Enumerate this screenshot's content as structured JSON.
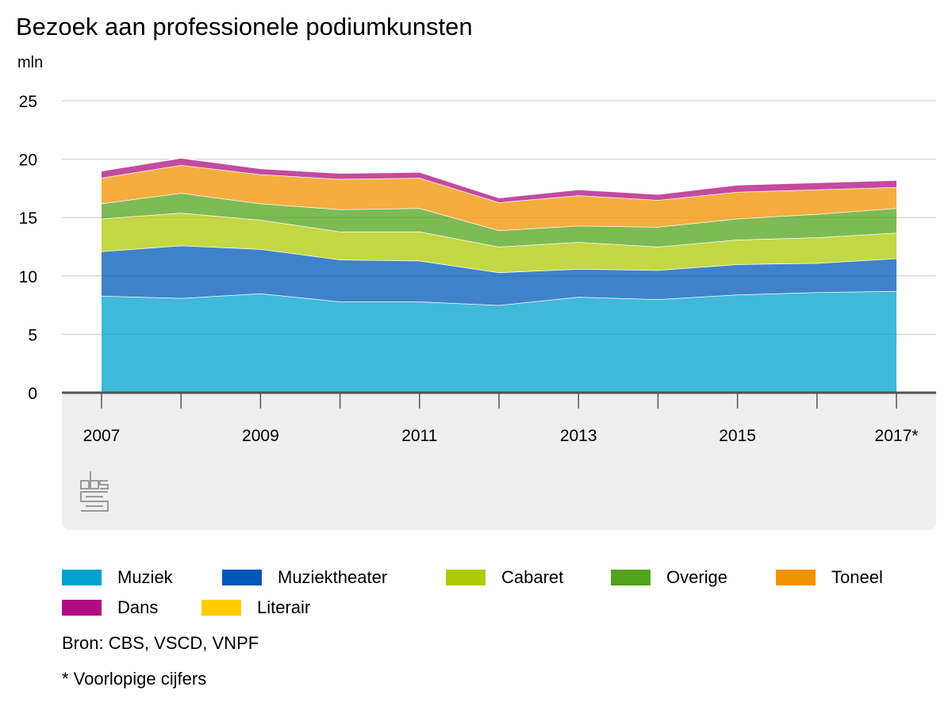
{
  "title": "Bezoek aan professionele podiumkunsten",
  "unit_label": "mln",
  "chart_data": {
    "type": "area",
    "stacked": true,
    "x": [
      "2007",
      "2008",
      "2009",
      "2010",
      "2011",
      "2012",
      "2013",
      "2014",
      "2015",
      "2016",
      "2017*"
    ],
    "x_tick_labels": [
      "2007",
      "2009",
      "2011",
      "2013",
      "2015",
      "2017*"
    ],
    "y_ticks": [
      0,
      5,
      10,
      15,
      20,
      25
    ],
    "ylim": [
      0,
      25
    ],
    "grid": true,
    "legend_position": "bottom",
    "series": [
      {
        "name": "Muziek",
        "color": "#00a1cd",
        "values": [
          8.3,
          8.1,
          8.5,
          7.8,
          7.8,
          7.5,
          8.2,
          8.0,
          8.4,
          8.6,
          8.7
        ]
      },
      {
        "name": "Muziektheater",
        "color": "#0058b8",
        "values": [
          3.8,
          4.5,
          3.8,
          3.6,
          3.5,
          2.8,
          2.4,
          2.5,
          2.6,
          2.5,
          2.8
        ]
      },
      {
        "name": "Cabaret",
        "color": "#afcb05",
        "values": [
          2.8,
          2.8,
          2.5,
          2.4,
          2.5,
          2.2,
          2.3,
          2.0,
          2.1,
          2.2,
          2.2
        ]
      },
      {
        "name": "Overige",
        "color": "#53a31d",
        "values": [
          1.3,
          1.7,
          1.4,
          1.9,
          2.0,
          1.4,
          1.4,
          1.7,
          1.8,
          2.0,
          2.1
        ]
      },
      {
        "name": "Toneel",
        "color": "#f39200",
        "values": [
          2.2,
          2.4,
          2.5,
          2.6,
          2.6,
          2.4,
          2.6,
          2.3,
          2.3,
          2.1,
          1.8
        ]
      },
      {
        "name": "Dans",
        "color": "#af0e80",
        "values": [
          0.6,
          0.6,
          0.5,
          0.5,
          0.5,
          0.4,
          0.5,
          0.5,
          0.6,
          0.6,
          0.6
        ]
      },
      {
        "name": "Literair",
        "color": "#ffcc00",
        "values": [
          0,
          0,
          0,
          0,
          0,
          0,
          0,
          0,
          0,
          0,
          0
        ]
      }
    ]
  },
  "legend": {
    "items": [
      {
        "label": "Muziek",
        "color": "#00a1cd"
      },
      {
        "label": "Muziektheater",
        "color": "#0058b8"
      },
      {
        "label": "Cabaret",
        "color": "#afcb05"
      },
      {
        "label": "Overige",
        "color": "#53a31d"
      },
      {
        "label": "Toneel",
        "color": "#f39200"
      },
      {
        "label": "Dans",
        "color": "#af0e80"
      },
      {
        "label": "Literair",
        "color": "#ffcc00"
      }
    ]
  },
  "source": "Bron: CBS, VSCD, VNPF",
  "footnote": "* Voorlopige cijfers",
  "logo_icon": "cbs-logo-icon"
}
